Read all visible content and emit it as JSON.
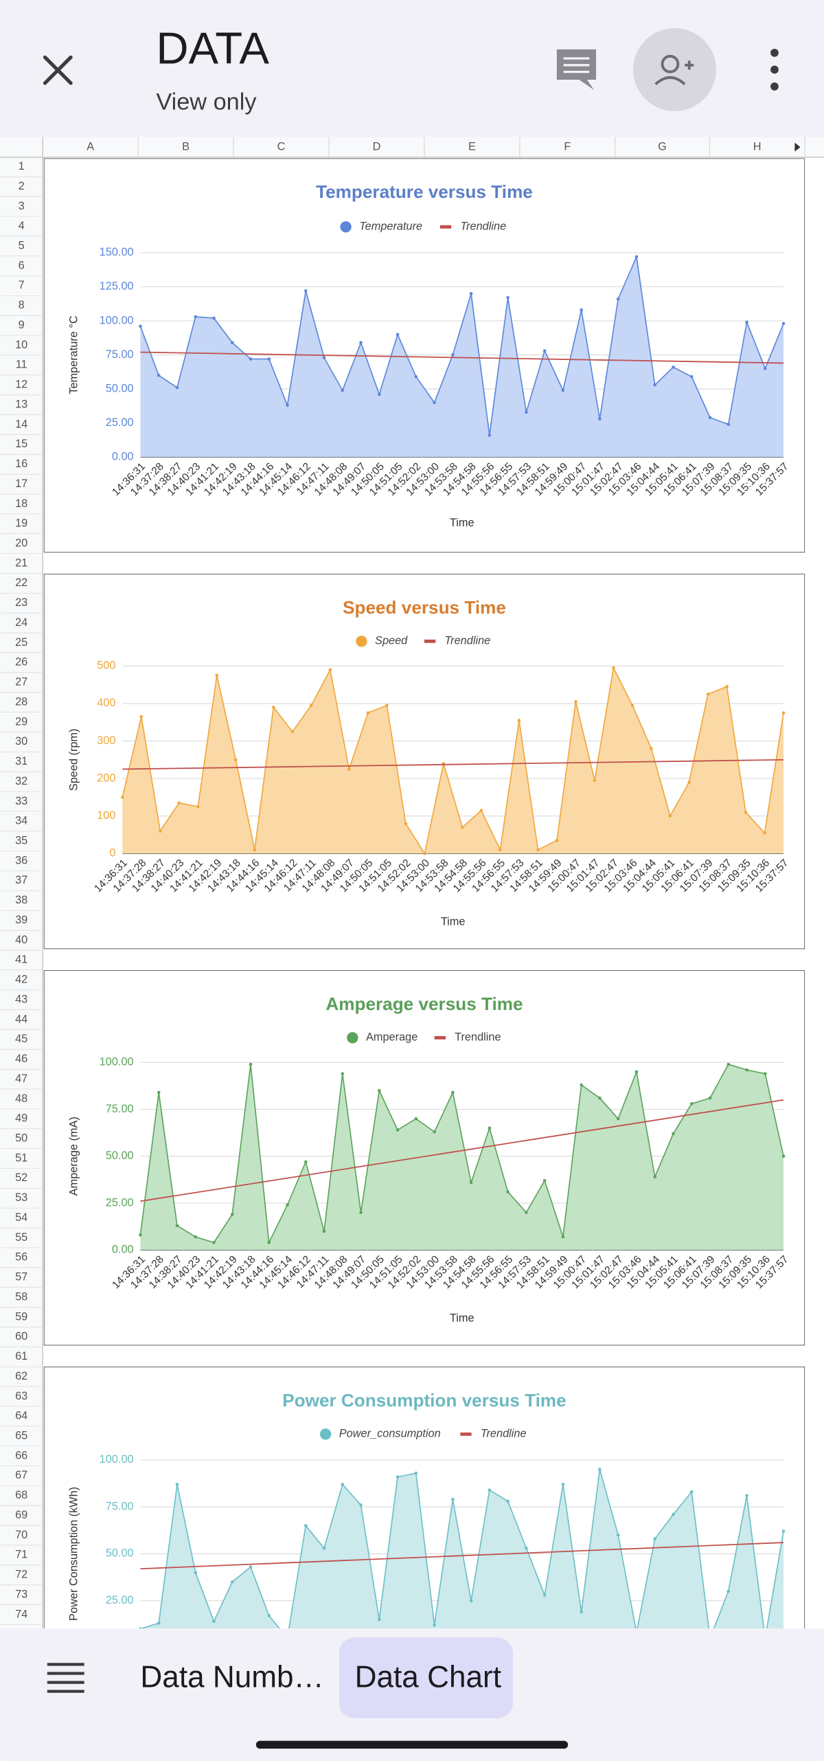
{
  "header": {
    "title": "DATA",
    "subtitle": "View only"
  },
  "columns": [
    "A",
    "B",
    "C",
    "D",
    "E",
    "F",
    "G",
    "H"
  ],
  "rows": [
    1,
    2,
    3,
    4,
    5,
    6,
    7,
    8,
    9,
    10,
    11,
    12,
    13,
    14,
    15,
    16,
    17,
    18,
    19,
    20,
    21,
    22,
    23,
    24,
    25,
    26,
    27,
    28,
    29,
    30,
    31,
    32,
    33,
    34,
    35,
    36,
    37,
    38,
    39,
    40,
    41,
    42,
    43,
    44,
    45,
    46,
    47,
    48,
    49,
    50,
    51,
    52,
    53,
    54,
    55,
    56,
    57,
    58,
    59,
    60,
    61,
    62,
    63,
    64,
    65,
    66,
    67,
    68,
    69,
    70,
    71,
    72,
    73,
    74
  ],
  "charts": [
    {
      "type": "area",
      "title": "Temperature versus Time",
      "ylabel": "Temperature °C",
      "xlabel": "Time",
      "grid": true,
      "title_color": "#5b7fc7",
      "categories": [
        "14:36:31",
        "14:37:28",
        "14:38:27",
        "14:40:23",
        "14:41:21",
        "14:42:19",
        "14:43:18",
        "14:44:16",
        "14:45:14",
        "14:46:12",
        "14:47:11",
        "14:48:08",
        "14:49:07",
        "14:50:05",
        "14:51:05",
        "14:52:02",
        "14:53:00",
        "14:53:58",
        "14:54:58",
        "14:55:56",
        "14:56:55",
        "14:57:53",
        "14:58:51",
        "14:59:49",
        "15:00:47",
        "15:01:47",
        "15:02:47",
        "15:03:46",
        "15:04:44",
        "15:05:41",
        "15:06:41",
        "15:07:39",
        "15:08:37",
        "15:09:35",
        "15:10:36",
        "15:37:57"
      ],
      "series": [
        {
          "name": "Temperature",
          "color": "#5b87d9",
          "fill": "#c6d6f6",
          "italic": true,
          "values": [
            96,
            60,
            51,
            103,
            102,
            84,
            72,
            72,
            38,
            122,
            73,
            49,
            84,
            46,
            90,
            59,
            40,
            75,
            120,
            16,
            117,
            33,
            78,
            49,
            108,
            28,
            116,
            147,
            53,
            66,
            59,
            29,
            24,
            99,
            65,
            98
          ]
        }
      ],
      "trendline": {
        "name": "Trendline",
        "color": "#c0504d",
        "start": 77,
        "end": 69
      },
      "ylim": [
        0,
        150
      ],
      "yticks": [
        {
          "value": 0,
          "label": "0.00"
        },
        {
          "value": 25,
          "label": "25.00"
        },
        {
          "value": 50,
          "label": "50.00"
        },
        {
          "value": 75,
          "label": "75.00"
        },
        {
          "value": 100,
          "label": "100.00"
        },
        {
          "value": 125,
          "label": "125.00"
        },
        {
          "value": 150,
          "label": "150.00"
        }
      ]
    },
    {
      "type": "area",
      "title": "Speed versus Time",
      "ylabel": "Speed (rpm)",
      "xlabel": "Time",
      "grid": true,
      "title_color": "#d77d2e",
      "categories": [
        "14:36:31",
        "14:37:28",
        "14:38:27",
        "14:40:23",
        "14:41:21",
        "14:42:19",
        "14:43:18",
        "14:44:16",
        "14:45:14",
        "14:46:12",
        "14:47:11",
        "14:48:08",
        "14:49:07",
        "14:50:05",
        "14:51:05",
        "14:52:02",
        "14:53:00",
        "14:53:58",
        "14:54:58",
        "14:55:56",
        "14:56:55",
        "14:57:53",
        "14:58:51",
        "14:59:49",
        "15:00:47",
        "15:01:47",
        "15:02:47",
        "15:03:46",
        "15:04:44",
        "15:05:41",
        "15:06:41",
        "15:07:39",
        "15:08:37",
        "15:09:35",
        "15:10:36",
        "15:37:57"
      ],
      "series": [
        {
          "name": "Speed",
          "color": "#f0a73a",
          "fill": "#fad9a6",
          "italic": true,
          "values": [
            150,
            365,
            60,
            135,
            125,
            475,
            250,
            10,
            390,
            325,
            395,
            490,
            225,
            375,
            395,
            80,
            0,
            240,
            70,
            115,
            10,
            355,
            10,
            35,
            405,
            195,
            495,
            395,
            280,
            100,
            190,
            425,
            445,
            110,
            55,
            375
          ]
        }
      ],
      "trendline": {
        "name": "Trendline",
        "color": "#c0504d",
        "start": 225,
        "end": 250
      },
      "ylim": [
        0,
        500
      ],
      "yticks": [
        0,
        100,
        200,
        300,
        400,
        500
      ]
    },
    {
      "type": "area",
      "title": "Amperage versus Time",
      "ylabel": "Amperage (mA)",
      "xlabel": "Time",
      "grid": true,
      "title_color": "#5a9e59",
      "categories": [
        "14:36:31",
        "14:37:28",
        "14:38:27",
        "14:40:23",
        "14:41:21",
        "14:42:19",
        "14:43:18",
        "14:44:16",
        "14:45:14",
        "14:46:12",
        "14:47:11",
        "14:48:08",
        "14:49:07",
        "14:50:05",
        "14:51:05",
        "14:52:02",
        "14:53:00",
        "14:53:58",
        "14:54:58",
        "14:55:56",
        "14:56:55",
        "14:57:53",
        "14:58:51",
        "14:59:49",
        "15:00:47",
        "15:01:47",
        "15:02:47",
        "15:03:46",
        "15:04:44",
        "15:05:41",
        "15:06:41",
        "15:07:39",
        "15:08:37",
        "15:09:35",
        "15:10:36",
        "15:37:57"
      ],
      "series": [
        {
          "name": "Amperage",
          "color": "#5aa35a",
          "fill": "#c3e3c5",
          "italic": false,
          "values": [
            8,
            84,
            13,
            7,
            4,
            19,
            99,
            4,
            24,
            47,
            10,
            94,
            20,
            85,
            64,
            70,
            63,
            84,
            36,
            65,
            31,
            20,
            37,
            7,
            88,
            81,
            70,
            95,
            39,
            62,
            78,
            81,
            99,
            96,
            94,
            50
          ]
        }
      ],
      "trendline": {
        "name": "Trendline",
        "color": "#c0504d",
        "start": 26,
        "end": 80
      },
      "ylim": [
        0,
        100
      ],
      "yticks": [
        {
          "value": 0,
          "label": "0.00"
        },
        {
          "value": 25,
          "label": "25.00"
        },
        {
          "value": 50,
          "label": "50.00"
        },
        {
          "value": 75,
          "label": "75.00"
        },
        {
          "value": 100,
          "label": "100.00"
        }
      ]
    },
    {
      "type": "area",
      "title": "Power Consumption versus Time",
      "ylabel": "Power Consumption (kWh)",
      "grid": true,
      "title_color": "#6cb8c0",
      "series": [
        {
          "name": "Power_consumption",
          "color": "#6bbfc6",
          "fill": "#cce9ec",
          "italic": true,
          "values": [
            10,
            13,
            87,
            40,
            14,
            35,
            43,
            17,
            5,
            65,
            53,
            87,
            76,
            15,
            91,
            93,
            12,
            79,
            25,
            84,
            78,
            53,
            28,
            87,
            19,
            95,
            60,
            8,
            58,
            71,
            83,
            5,
            30,
            81,
            5,
            62
          ]
        }
      ],
      "trendline": {
        "name": "Trendline",
        "color": "#c0504d",
        "start": 42,
        "end": 56
      },
      "ylim": [
        0,
        100
      ],
      "yticks": [
        {
          "value": 25,
          "label": "25.00"
        },
        {
          "value": 50,
          "label": "50.00"
        },
        {
          "value": 75,
          "label": "75.00"
        },
        {
          "value": 100,
          "label": "100.00"
        }
      ]
    }
  ],
  "tabs": [
    "Data Numb…",
    "Data Chart"
  ]
}
